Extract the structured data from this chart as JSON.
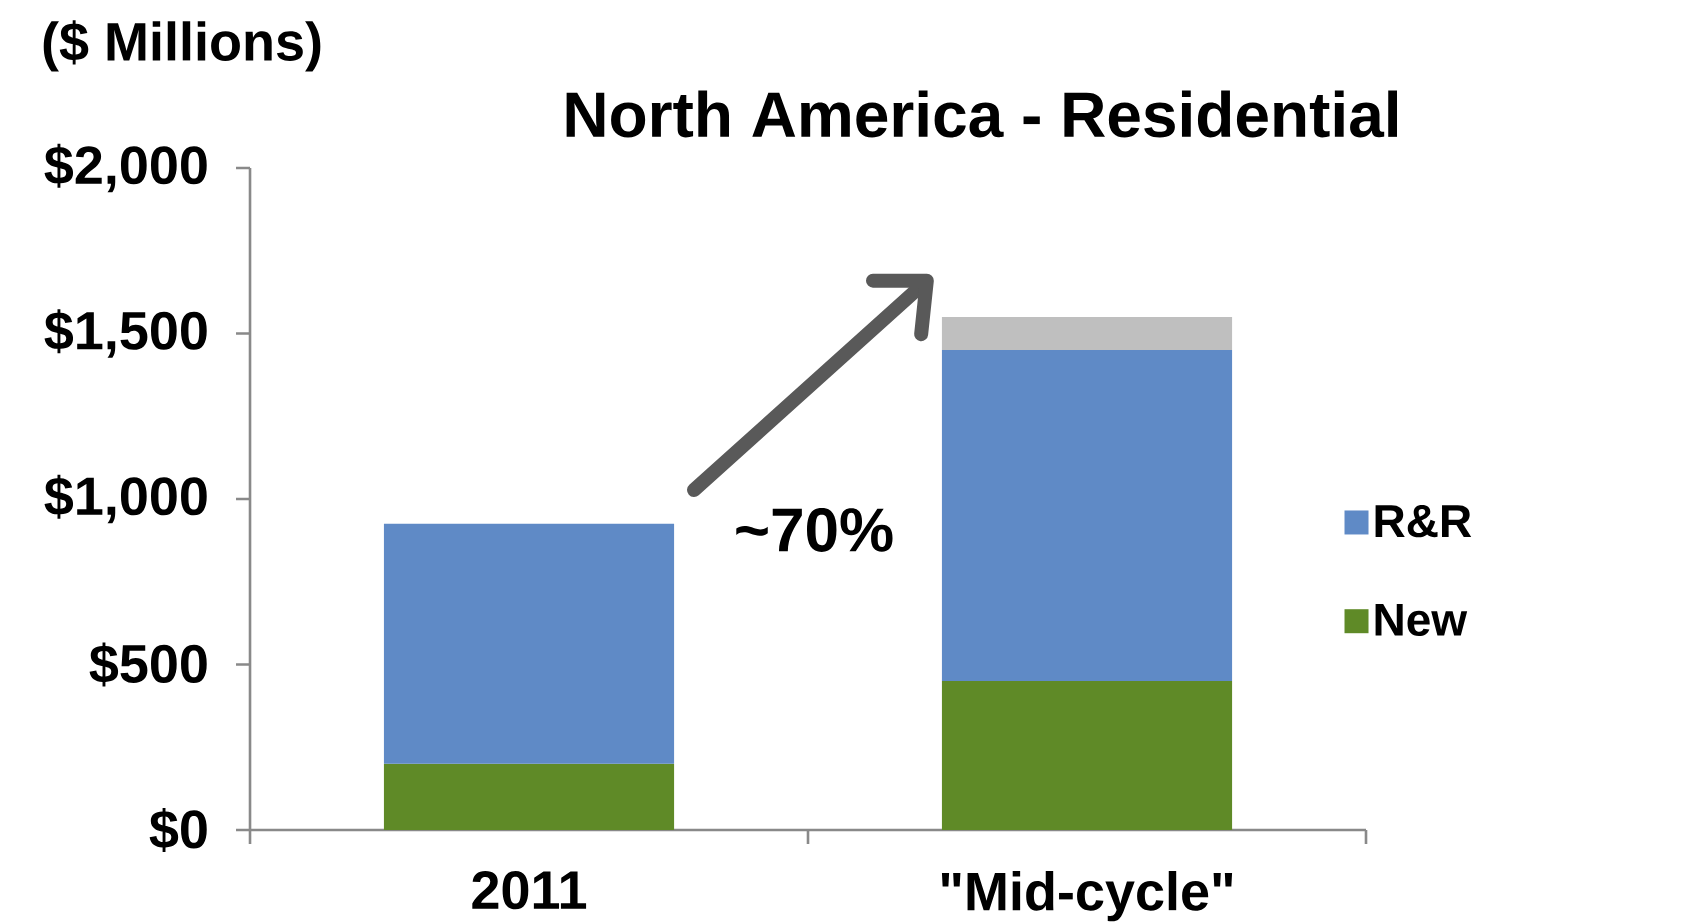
{
  "chart_data": {
    "type": "bar",
    "stacked": true,
    "title": "North America - Residential",
    "ylabel": "($ Millions)",
    "categories": [
      "2011",
      "\"Mid-cycle\""
    ],
    "series": [
      {
        "name": "New",
        "color": "#5f8a27",
        "values": [
          200,
          450
        ]
      },
      {
        "name": "R&R",
        "color": "#5f8ac6",
        "values": [
          725,
          1000
        ]
      },
      {
        "color": "#bfbfbf",
        "values": [
          null,
          100
        ]
      }
    ],
    "ylim": [
      0,
      2000
    ],
    "yticks": [
      {
        "value": 0,
        "label": "$0"
      },
      {
        "value": 500,
        "label": "$500"
      },
      {
        "value": 1000,
        "label": "$1,000"
      },
      {
        "value": 1500,
        "label": "$1,500"
      },
      {
        "value": 2000,
        "label": "$2,000"
      }
    ],
    "annotations": [
      "~70%"
    ],
    "legend": "right"
  }
}
